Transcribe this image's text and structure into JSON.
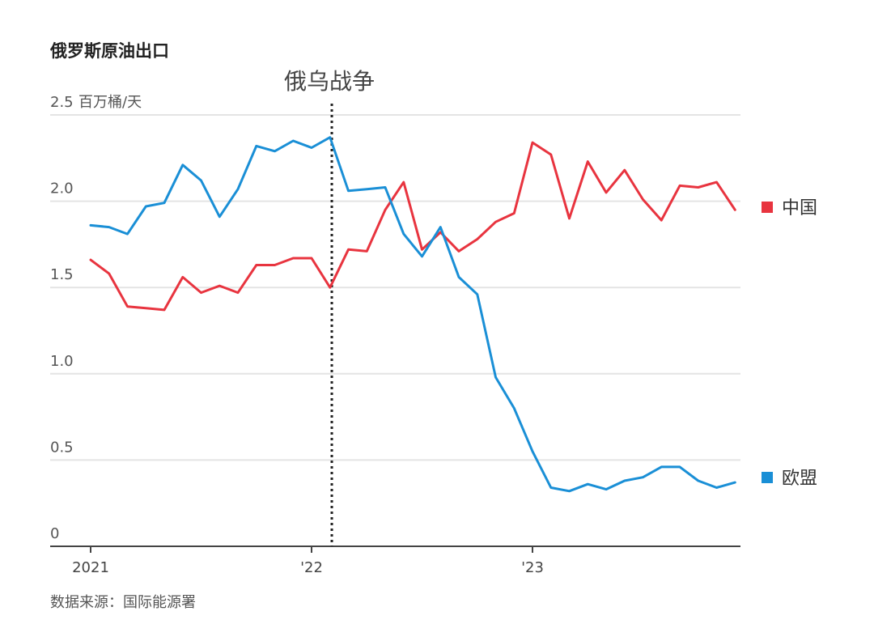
{
  "chart_data": {
    "type": "line",
    "title": "俄罗斯原油出口",
    "ylabel": "百万桶/天",
    "ylim": [
      0,
      2.5
    ],
    "yticks": [
      {
        "value": 0,
        "label": "0"
      },
      {
        "value": 0.5,
        "label": "0.5"
      },
      {
        "value": 1.0,
        "label": "1.0"
      },
      {
        "value": 1.5,
        "label": "1.5"
      },
      {
        "value": 2.0,
        "label": "2.0"
      },
      {
        "value": 2.5,
        "label": "2.5"
      }
    ],
    "xticks": [
      {
        "value": 0,
        "label": "2021"
      },
      {
        "value": 12,
        "label": "'22"
      },
      {
        "value": 24,
        "label": "'23"
      }
    ],
    "xlim": [
      0,
      35
    ],
    "annotation": {
      "x": 13.1,
      "label": "俄乌战争"
    },
    "series": [
      {
        "name": "中国",
        "color": "#e8343f",
        "values": [
          1.66,
          1.58,
          1.39,
          1.38,
          1.37,
          1.56,
          1.47,
          1.51,
          1.47,
          1.63,
          1.63,
          1.67,
          1.67,
          1.5,
          1.72,
          1.71,
          1.95,
          2.11,
          1.72,
          1.82,
          1.71,
          1.78,
          1.88,
          1.93,
          2.34,
          2.27,
          1.9,
          2.23,
          2.05,
          2.18,
          2.01,
          1.89,
          2.09,
          2.08,
          2.11,
          1.95
        ]
      },
      {
        "name": "欧盟",
        "color": "#1a8fd6",
        "values": [
          1.86,
          1.85,
          1.81,
          1.97,
          1.99,
          2.21,
          2.12,
          1.91,
          2.07,
          2.32,
          2.29,
          2.35,
          2.31,
          2.37,
          2.06,
          2.07,
          2.08,
          1.81,
          1.68,
          1.85,
          1.56,
          1.46,
          0.98,
          0.8,
          0.55,
          0.34,
          0.32,
          0.36,
          0.33,
          0.38,
          0.4,
          0.46,
          0.46,
          0.38,
          0.34,
          0.37
        ]
      }
    ],
    "source": "数据来源：国际能源署"
  }
}
